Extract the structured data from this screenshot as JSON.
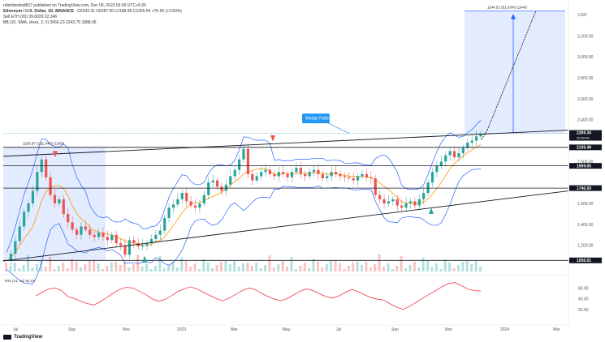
{
  "header": {
    "publisher": "rahimbedoid507 published on TradingView.com, Dec 05, 2023 03:39 UTC+5:30",
    "symbol": "Ethereum / U.S. Dollar, 1D, BINANCE",
    "ohlc": "O2242.31  H2287.50  L2188.99  C2265.54  +76.65 (+3.50%)",
    "ind1": "Sell  ETH (20)  39.6029  22.346",
    "ind2": "BB (20, SMA, close, 2, 0)  2066.23  2243.75  1888.95"
  },
  "logo": "TradingView",
  "colors": {
    "up": "#26a69a",
    "down": "#ef5350",
    "ma": "#ff9800",
    "bb": "#2962ff",
    "box": "#2962ff",
    "line": "#131722",
    "rsi": "#f23645",
    "label_bg": "#2196f3"
  },
  "chart_data": {
    "type": "candlestick",
    "price_axis": {
      "currency": "USD",
      "ticks": [
        "3,200.00",
        "3,000.00",
        "2,800.00",
        "2,600.00",
        "2,400.00",
        "2,000.00",
        "1,600.00",
        "1,400.00",
        "1,200.00"
      ],
      "tick_values": [
        3200,
        3000,
        2800,
        2600,
        2400,
        2000,
        1600,
        1400,
        1200
      ],
      "range": [
        950,
        3450
      ]
    },
    "time_axis": [
      "Jul",
      "Sep",
      "Nov",
      "2023",
      "Mar",
      "May",
      "Jul",
      "Sep",
      "Nov",
      "2024",
      "Mar"
    ],
    "levels": [
      {
        "value": 2269.34,
        "label": "2269.34",
        "sub": "20:30:45",
        "style": "current"
      },
      {
        "value": 2135.49,
        "label": "2135.49",
        "style": "solid"
      },
      {
        "value": 1959.05,
        "label": "1959.05",
        "style": "solid"
      },
      {
        "value": 1746.5,
        "label": "1746.50",
        "style": "solid"
      },
      {
        "value": 1056.01,
        "label": "1056.01",
        "style": "solid"
      }
    ],
    "annotations": {
      "wedge_label": "Wedge Pattern",
      "left_box": "1165.97 (121.94%) 11654",
      "right_box": "1144.51 (51.03%) 11443"
    },
    "rsi": {
      "label": "RSI (14, 14)  54.23",
      "ticks": [
        "60.00",
        "40.00",
        "20.00"
      ],
      "range": [
        0,
        80
      ],
      "values": [
        45,
        52,
        58,
        60,
        55,
        44,
        40,
        35,
        31,
        28,
        34,
        42,
        50,
        57,
        61,
        60,
        54,
        48,
        40,
        35,
        38,
        45,
        53,
        58,
        62,
        58,
        52,
        46,
        40,
        36,
        41,
        48,
        55,
        60,
        57,
        50,
        44,
        39,
        36,
        40,
        47,
        54,
        58,
        55,
        49,
        44,
        41,
        45,
        52,
        57,
        53,
        47,
        42,
        39,
        37,
        30,
        24,
        20,
        26,
        33,
        41,
        48,
        55,
        62,
        68,
        70,
        64,
        58,
        55,
        54
      ]
    },
    "prices": [
      1050,
      1120,
      1240,
      1380,
      1520,
      1600,
      1720,
      1900,
      2020,
      1850,
      1680,
      1600,
      1640,
      1500,
      1420,
      1350,
      1300,
      1380,
      1350,
      1300,
      1280,
      1320,
      1280,
      1250,
      1300,
      1220,
      1200,
      1110,
      1250,
      1220,
      1190,
      1200,
      1220,
      1260,
      1300,
      1340,
      1460,
      1560,
      1590,
      1640,
      1700,
      1620,
      1580,
      1560,
      1600,
      1680,
      1800,
      1820,
      1760,
      1720,
      1780,
      1860,
      1920,
      2020,
      2120,
      1880,
      1820,
      1860,
      1900,
      1920,
      1880,
      1860,
      1900,
      1880,
      1850,
      1900,
      1940,
      1880,
      1860,
      1900,
      1920,
      1880,
      1840,
      1860,
      1900,
      1880,
      1860,
      1850,
      1840,
      1820,
      1860,
      1880,
      1850,
      1840,
      1680,
      1640,
      1600,
      1620,
      1640,
      1580,
      1560,
      1600,
      1620,
      1580,
      1640,
      1700,
      1800,
      1900,
      1960,
      2000,
      2060,
      2100,
      2040,
      2080,
      2130,
      2180,
      2200,
      2240,
      2265
    ]
  }
}
